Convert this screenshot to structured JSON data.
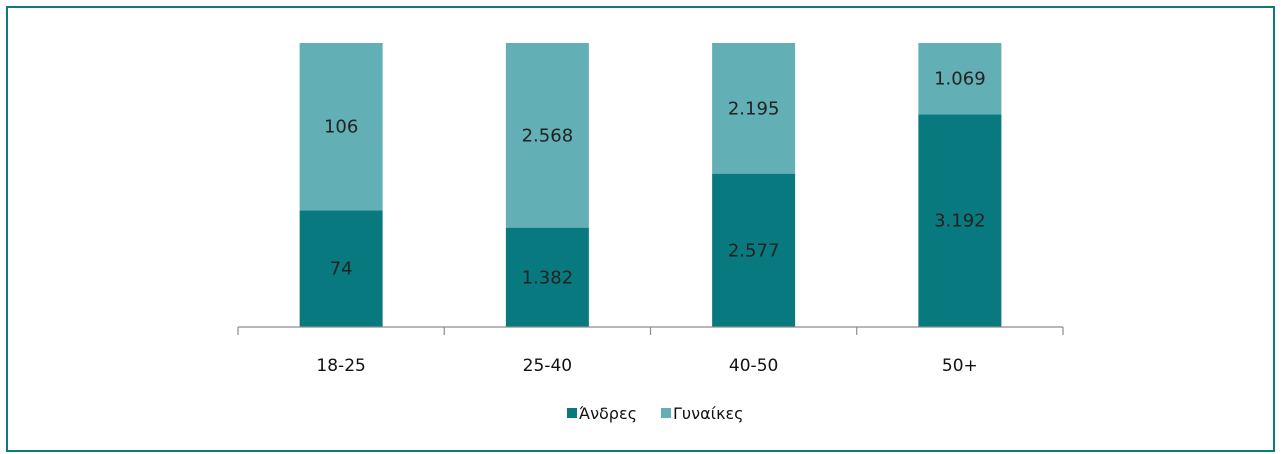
{
  "chart_data": {
    "type": "bar",
    "stacked": true,
    "categories": [
      "18-25",
      "25-40",
      "40-50",
      "50+"
    ],
    "series": [
      {
        "name": "Άνδρες",
        "color": "#087a7f",
        "values": [
          74,
          1382,
          2577,
          3192
        ],
        "labels": [
          "74",
          "1.382",
          "2.577",
          "3.192"
        ]
      },
      {
        "name": "Γυναίκες",
        "color": "#62afb5",
        "values": [
          106,
          2568,
          2195,
          1069
        ],
        "labels": [
          "106",
          "2.568",
          "2.195",
          "1.069"
        ]
      }
    ],
    "normalized": true,
    "legend_position": "bottom",
    "grid": false
  }
}
